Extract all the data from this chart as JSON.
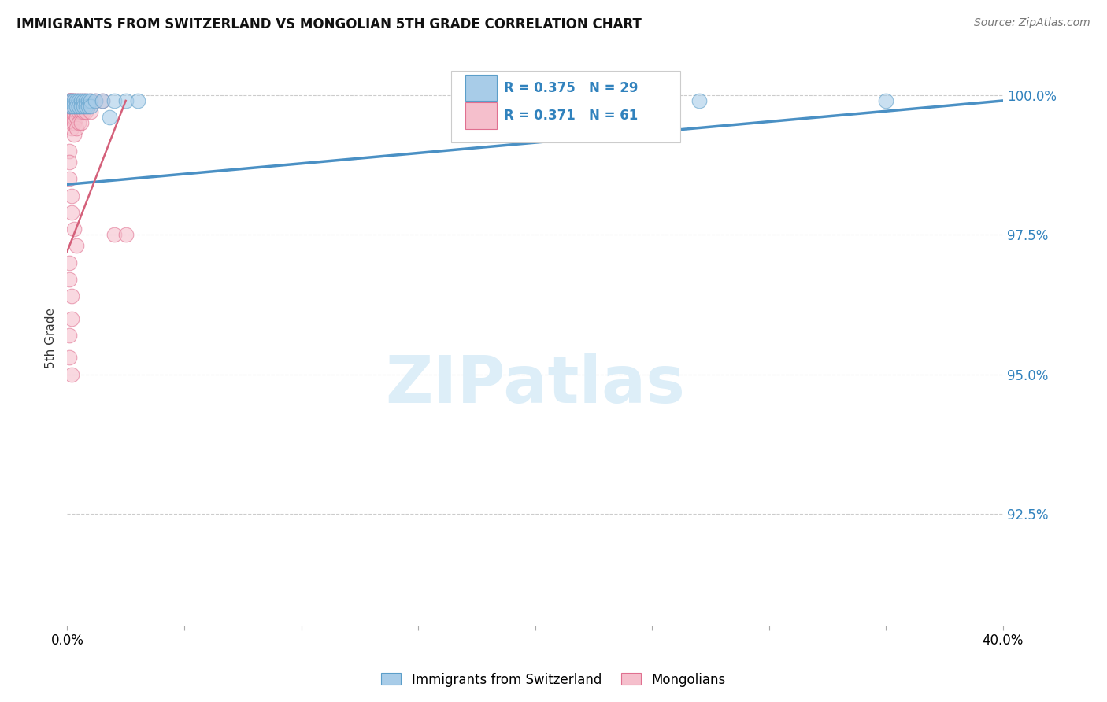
{
  "title": "IMMIGRANTS FROM SWITZERLAND VS MONGOLIAN 5TH GRADE CORRELATION CHART",
  "source": "Source: ZipAtlas.com",
  "ylabel": "5th Grade",
  "yaxis_labels": [
    "100.0%",
    "97.5%",
    "95.0%",
    "92.5%"
  ],
  "yaxis_values": [
    1.0,
    0.975,
    0.95,
    0.925
  ],
  "xmin": 0.0,
  "xmax": 0.4,
  "ymin": 0.905,
  "ymax": 1.008,
  "legend_blue_r": "0.375",
  "legend_blue_n": "29",
  "legend_pink_r": "0.371",
  "legend_pink_n": "61",
  "blue_color": "#a8cce8",
  "pink_color": "#f5bfcc",
  "blue_edge_color": "#5b9ec9",
  "pink_edge_color": "#e07090",
  "blue_line_color": "#4a90c4",
  "pink_line_color": "#d4607a",
  "watermark_color": "#ddeef8",
  "blue_trend": [
    0.0,
    0.984,
    0.4,
    0.999
  ],
  "pink_trend": [
    0.0,
    0.972,
    0.025,
    0.999
  ],
  "blue_scatter_x": [
    0.001,
    0.001,
    0.002,
    0.002,
    0.003,
    0.003,
    0.004,
    0.004,
    0.005,
    0.005,
    0.006,
    0.006,
    0.007,
    0.007,
    0.008,
    0.008,
    0.009,
    0.009,
    0.01,
    0.01,
    0.012,
    0.015,
    0.018,
    0.02,
    0.025,
    0.03,
    0.18,
    0.27,
    0.35
  ],
  "blue_scatter_y": [
    0.999,
    0.998,
    0.999,
    0.998,
    0.999,
    0.998,
    0.999,
    0.998,
    0.999,
    0.998,
    0.999,
    0.998,
    0.999,
    0.998,
    0.999,
    0.998,
    0.999,
    0.998,
    0.999,
    0.998,
    0.999,
    0.999,
    0.996,
    0.999,
    0.999,
    0.999,
    0.999,
    0.999,
    0.999
  ],
  "pink_scatter_x": [
    0.001,
    0.001,
    0.001,
    0.001,
    0.001,
    0.001,
    0.001,
    0.001,
    0.001,
    0.001,
    0.002,
    0.002,
    0.002,
    0.002,
    0.002,
    0.002,
    0.002,
    0.002,
    0.002,
    0.003,
    0.003,
    0.003,
    0.003,
    0.003,
    0.003,
    0.003,
    0.004,
    0.004,
    0.004,
    0.004,
    0.004,
    0.005,
    0.005,
    0.005,
    0.006,
    0.006,
    0.006,
    0.007,
    0.007,
    0.008,
    0.008,
    0.01,
    0.01,
    0.012,
    0.015,
    0.02,
    0.025,
    0.001,
    0.001,
    0.001,
    0.002,
    0.002,
    0.003,
    0.004,
    0.001,
    0.001,
    0.002,
    0.002,
    0.001,
    0.001,
    0.002
  ],
  "pink_scatter_y": [
    0.999,
    0.999,
    0.999,
    0.999,
    0.998,
    0.998,
    0.998,
    0.997,
    0.997,
    0.996,
    0.999,
    0.999,
    0.999,
    0.998,
    0.998,
    0.997,
    0.996,
    0.995,
    0.994,
    0.999,
    0.999,
    0.998,
    0.997,
    0.996,
    0.995,
    0.993,
    0.999,
    0.998,
    0.997,
    0.996,
    0.994,
    0.999,
    0.997,
    0.995,
    0.999,
    0.997,
    0.995,
    0.999,
    0.997,
    0.999,
    0.997,
    0.999,
    0.997,
    0.999,
    0.999,
    0.975,
    0.975,
    0.99,
    0.988,
    0.985,
    0.982,
    0.979,
    0.976,
    0.973,
    0.97,
    0.967,
    0.964,
    0.96,
    0.957,
    0.953,
    0.95
  ]
}
